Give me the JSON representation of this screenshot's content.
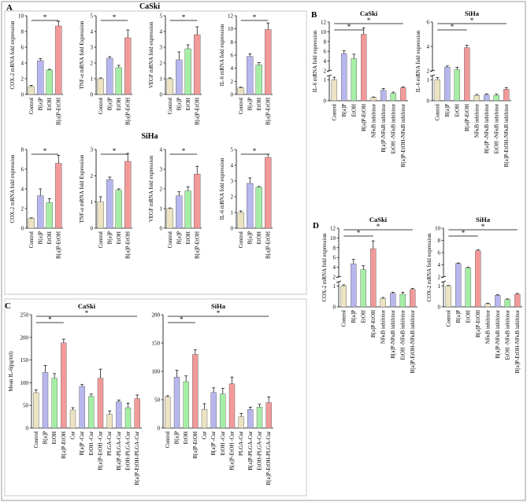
{
  "panel_labels": {
    "A": "A",
    "B": "B",
    "C": "C",
    "D": "D"
  },
  "cell_labels": {
    "caski_a": "CaSki",
    "siha_a": "SiHa"
  },
  "colors": {
    "Control": "#ece3c3",
    "B[a]P": "#b7b7ee",
    "EtOH": "#a6eea6",
    "B[a]P-EtOH": "#f29a9a"
  },
  "chart_data": [
    {
      "id": "A1",
      "type": "bar",
      "ylabel": "COX-2 mRNA fold expression",
      "categories": [
        "Control",
        "B[a]P",
        "EtOH",
        "B[a]P-EtOH"
      ],
      "values": [
        1,
        4.3,
        3.1,
        8.7
      ],
      "errors": [
        0.15,
        0.25,
        0.1,
        0.6
      ],
      "ylim": [
        0,
        10
      ],
      "yticks": [
        0,
        2,
        4,
        6,
        8,
        10
      ],
      "sig": [
        "*"
      ]
    },
    {
      "id": "A2",
      "type": "bar",
      "ylabel": "TNF-α mRNA fold Expression",
      "categories": [
        "Control",
        "B[a]P",
        "EtOH",
        "B[a]P-EtOH"
      ],
      "values": [
        1,
        2.3,
        1.7,
        3.6
      ],
      "errors": [
        0.05,
        0.1,
        0.15,
        0.5
      ],
      "ylim": [
        0,
        5
      ],
      "yticks": [
        0,
        1,
        2,
        3,
        4,
        5
      ],
      "sig": [
        "*"
      ]
    },
    {
      "id": "A3",
      "type": "bar",
      "ylabel": "VEGF mRNA fold expression",
      "categories": [
        "Control",
        "B[a]P",
        "EtOH",
        "B[a]P-EtOH"
      ],
      "values": [
        1,
        2.2,
        2.9,
        3.8
      ],
      "errors": [
        0.05,
        0.5,
        0.25,
        0.5
      ],
      "ylim": [
        0,
        5
      ],
      "yticks": [
        0,
        1,
        2,
        3,
        4,
        5
      ],
      "sig": [
        "*"
      ]
    },
    {
      "id": "A4",
      "type": "bar",
      "ylabel": "IL-6 mRNA fold expression",
      "categories": [
        "Control",
        "B[a]P",
        "EtOH",
        "B[a]P-EtOH"
      ],
      "values": [
        1,
        5.8,
        4.5,
        9.9
      ],
      "errors": [
        0.1,
        0.4,
        0.35,
        1.0
      ],
      "ylim": [
        0,
        12
      ],
      "yticks": [
        0,
        2,
        4,
        6,
        8,
        10,
        12
      ],
      "sig": [
        "*"
      ]
    },
    {
      "id": "A5",
      "type": "bar",
      "ylabel": "COX-2 mRNA fold expression",
      "categories": [
        "Control",
        "B[a]P",
        "EtOH",
        "B[a]P-EtOH"
      ],
      "values": [
        1,
        3.3,
        2.6,
        6.6
      ],
      "errors": [
        0.05,
        0.7,
        0.4,
        0.8
      ],
      "ylim": [
        0,
        8
      ],
      "yticks": [
        0,
        2,
        4,
        6,
        8
      ],
      "sig": [
        "*"
      ]
    },
    {
      "id": "A6",
      "type": "bar",
      "ylabel": "TNF-α mRNA fold Expression",
      "categories": [
        "Control",
        "B[a]P",
        "EtOH",
        "B[a]P-EtOH"
      ],
      "values": [
        1,
        1.85,
        1.45,
        2.55
      ],
      "errors": [
        0.2,
        0.1,
        0.05,
        0.3
      ],
      "ylim": [
        0,
        3
      ],
      "yticks": [
        0,
        1,
        2,
        3
      ],
      "sig": [
        "*"
      ]
    },
    {
      "id": "A7",
      "type": "bar",
      "ylabel": "VEGF mRNA fold expression",
      "categories": [
        "Control",
        "B[a]P",
        "EtOH",
        "B[a]P-EtOH"
      ],
      "values": [
        1,
        1.65,
        1.9,
        2.75
      ],
      "errors": [
        0.03,
        0.2,
        0.2,
        0.4
      ],
      "ylim": [
        0,
        4
      ],
      "yticks": [
        0,
        1,
        2,
        3,
        4
      ],
      "sig": [
        "*"
      ]
    },
    {
      "id": "A8",
      "type": "bar",
      "ylabel": "IL-6 mRNA fold expression",
      "categories": [
        "Control",
        "B[a]P",
        "EtOH",
        "B[a]P-EtOH"
      ],
      "values": [
        1,
        2.85,
        2.6,
        4.5
      ],
      "errors": [
        0.1,
        0.35,
        0.05,
        0.2
      ],
      "ylim": [
        0,
        5
      ],
      "yticks": [
        0,
        1,
        2,
        3,
        4,
        5
      ],
      "sig": [
        "*"
      ]
    },
    {
      "id": "B1",
      "type": "bar",
      "title": "CaSki",
      "ylabel": "IL-6 mRNA fold expression",
      "categories": [
        "Control",
        "B[a]P",
        "EtOH",
        "B[a]P-EtOH",
        "NFκB inhibitor",
        "B[a]P-NFκB inhibitor",
        "EtOH -NFκB inhibitor",
        "B[a]P-EtOH-NFκB inhibitor"
      ],
      "values": [
        1,
        5.5,
        4.5,
        9.5,
        0.15,
        0.5,
        0.35,
        0.62
      ],
      "errors": [
        0.12,
        0.6,
        0.9,
        1.3,
        0.03,
        0.08,
        0.06,
        0.04
      ],
      "yticks_low": [
        0,
        1
      ],
      "yticks_high": [
        2,
        4,
        6,
        8,
        10,
        12
      ],
      "sig": [
        "*",
        "*"
      ]
    },
    {
      "id": "B2",
      "type": "bar",
      "title": "SiHa",
      "ylabel": "IL-6 mRNA fold expression",
      "categories": [
        "Control",
        "B[a]P",
        "EtOH",
        "B[a]P-EtOH",
        "NFκB inhibitor",
        "B[a]P -NFκB inhibitor",
        "EtOH -NFκB inhibitor",
        "B[a]P-EtOH-NFκB inhibitor"
      ],
      "values": [
        1,
        2.3,
        2.1,
        3.9,
        0.25,
        0.28,
        0.26,
        0.55
      ],
      "errors": [
        0.1,
        0.1,
        0.2,
        0.2,
        0.05,
        0.05,
        0.05,
        0.08
      ],
      "yticks_low": [
        0,
        1
      ],
      "yticks_high": [
        2,
        4,
        6
      ],
      "sig": [
        "*",
        "*"
      ]
    },
    {
      "id": "C1",
      "type": "bar",
      "title": "CaSki",
      "ylabel": "Mean IL-6(pg/ml)",
      "categories": [
        "Control",
        "B[a]P",
        "EtOH",
        "B[a]P-EtOH",
        "Cur",
        "B[a]P -Cur",
        "EtOH -Cur",
        "B[a]P-EtOH -Cur",
        "PLGA-Cur",
        "B[a]P-PLGA-Cur",
        "EtOH-PLGA-Cur",
        "B[a]P-EtOH-PLGA-Cur"
      ],
      "values": [
        78,
        123,
        110,
        188,
        40,
        92,
        70,
        110,
        30,
        58,
        45,
        65
      ],
      "errors": [
        6,
        15,
        10,
        8,
        5,
        4,
        5,
        20,
        8,
        4,
        10,
        8
      ],
      "ylim": [
        0,
        250
      ],
      "yticks": [
        0,
        50,
        100,
        150,
        200,
        250
      ],
      "sig": [
        "*",
        "*"
      ]
    },
    {
      "id": "C2",
      "type": "bar",
      "title": "SiHa",
      "ylabel": "",
      "categories": [
        "Control",
        "B[a]P",
        "EtOH",
        "B[a]P-EtOH",
        "Cur",
        "B[a]P -Cur",
        "EtOH -Cur",
        "B[a]P-EtOH -Cur",
        "PLGA-Cur",
        "B[a]P-PLGA-Cur",
        "EtOH-PLGA-Cur",
        "B[a]P-EtOH-PLGA-Cur"
      ],
      "values": [
        55,
        90,
        82,
        130,
        33,
        63,
        60,
        78,
        20,
        33,
        37,
        45
      ],
      "errors": [
        2,
        12,
        10,
        8,
        10,
        8,
        10,
        12,
        6,
        4,
        5,
        10
      ],
      "ylim": [
        0,
        200
      ],
      "yticks": [
        0,
        50,
        100,
        150,
        200
      ],
      "sig": [
        "*",
        "*"
      ]
    },
    {
      "id": "D1",
      "type": "bar",
      "title": "CaSki",
      "ylabel": "COX-2 mRNA fold expression",
      "categories": [
        "Control",
        "B[a]P",
        "EtOH",
        "B[a]P-EtOH",
        "NFκB inhibitor",
        "B[a]P-NFκB inhibitor",
        "EtOH -NFκB inhibitor",
        "B[a]P-EtOH-NFκB inhibitor"
      ],
      "values": [
        1,
        4.7,
        3.5,
        7.8,
        0.4,
        0.65,
        0.6,
        0.83
      ],
      "errors": [
        0.05,
        0.9,
        0.8,
        1.6,
        0.05,
        0.05,
        0.1,
        0.05
      ],
      "yticks_low": [
        0,
        1
      ],
      "yticks_high": [
        2,
        4,
        6,
        8,
        10,
        12
      ],
      "sig": [
        "*",
        "*"
      ]
    },
    {
      "id": "D2",
      "type": "bar",
      "title": "SiHa",
      "ylabel": "COX-2 mRNA fold expression",
      "categories": [
        "Control",
        "B[a]P",
        "EtOH",
        "B[a]P-EtOH",
        "NFκB inhibitor",
        "B[a]P-NFκB inhibitor",
        "EtOH -NFκB inhibitor",
        "B[a]P-EtOH-NFκB inhibitor"
      ],
      "values": [
        1,
        4.2,
        3.5,
        6.3,
        0.15,
        0.55,
        0.35,
        0.6
      ],
      "errors": [
        0.02,
        0.1,
        0.1,
        0.15,
        0.03,
        0.03,
        0.03,
        0.04
      ],
      "yticks_low": [
        0,
        1
      ],
      "yticks_high": [
        2,
        4,
        6,
        8,
        10
      ],
      "sig": [
        "*",
        "*"
      ]
    }
  ]
}
